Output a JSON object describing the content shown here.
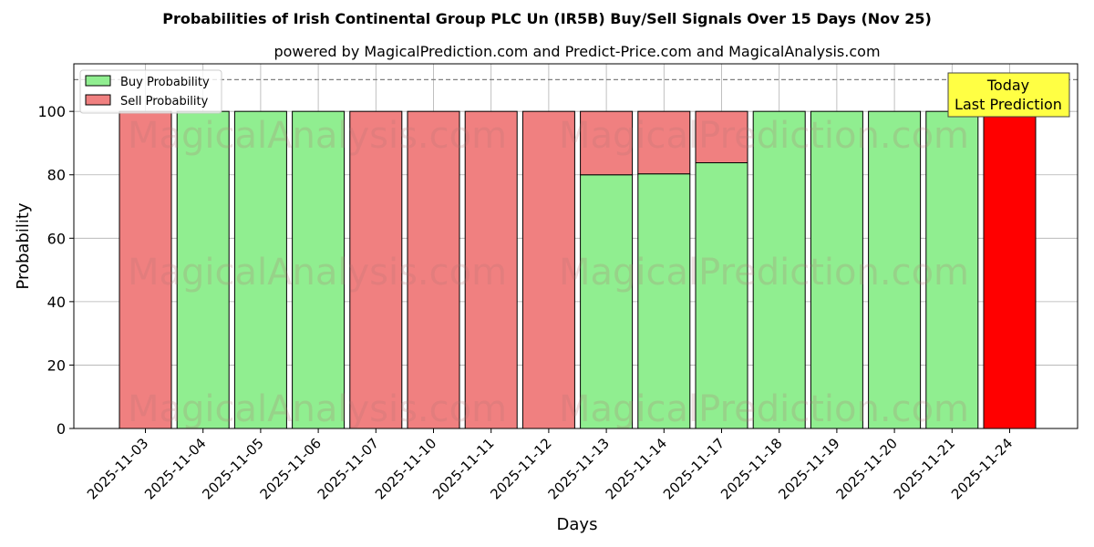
{
  "chart_data": {
    "type": "bar",
    "stacked": true,
    "title": "Probabilities of Irish Continental Group PLC Un (IR5B) Buy/Sell Signals Over 15 Days (Nov 25)",
    "subtitle": "powered by MagicalPrediction.com and Predict-Price.com and MagicalAnalysis.com",
    "xlabel": "Days",
    "ylabel": "Probability",
    "ylim": [
      0,
      115
    ],
    "yticks": [
      0,
      20,
      40,
      60,
      80,
      100
    ],
    "grid": true,
    "legend_position": "top-left",
    "reference_line": 110,
    "categories": [
      "2025-11-03",
      "2025-11-04",
      "2025-11-05",
      "2025-11-06",
      "2025-11-07",
      "2025-11-10",
      "2025-11-11",
      "2025-11-12",
      "2025-11-13",
      "2025-11-14",
      "2025-11-17",
      "2025-11-18",
      "2025-11-19",
      "2025-11-20",
      "2025-11-21",
      "2025-11-24"
    ],
    "series": [
      {
        "name": "Buy Probability",
        "color": "#90ee90",
        "values": [
          0,
          100,
          100,
          100,
          0,
          0,
          0,
          0,
          80,
          80.3,
          83.8,
          100,
          100,
          100,
          100,
          0
        ]
      },
      {
        "name": "Sell Probability",
        "color": "#f08080",
        "values": [
          100,
          0,
          0,
          0,
          100,
          100,
          100,
          100,
          20,
          19.7,
          16.2,
          0,
          0,
          0,
          0,
          100
        ]
      }
    ],
    "highlight": {
      "index": 15,
      "color": "#ff0000"
    },
    "annotation": {
      "line1": "Today",
      "line2": "Last Prediction",
      "background": "#ffff44"
    },
    "watermarks": [
      "MagicalAnalysis.com",
      "MagicalPrediction.com"
    ]
  }
}
